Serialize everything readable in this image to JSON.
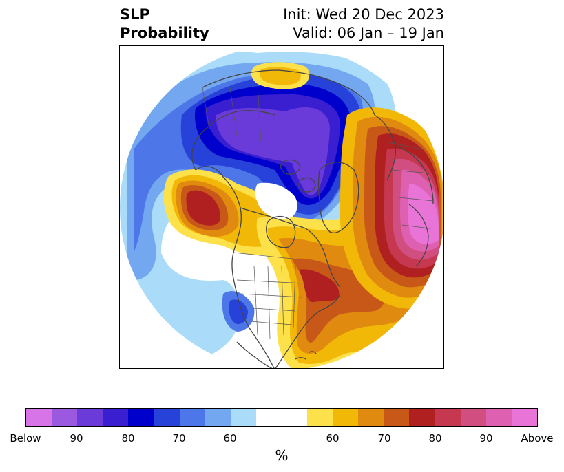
{
  "title": {
    "variable_line1": "SLP",
    "variable_line2": "Probability",
    "init": "Init: Wed 20 Dec 2023",
    "valid": "Valid: 06 Jan – 19 Jan"
  },
  "map": {
    "projection": "north-polar-stereographic",
    "region": "Northern Hemisphere (North America, Arctic, Europe)"
  },
  "colorbar": {
    "unit": "%",
    "below_colors": [
      "#d674e8",
      "#9b59e0",
      "#6a3bd8",
      "#3a1fd0",
      "#0000cc",
      "#2642d8",
      "#4d76e8",
      "#73a8f0",
      "#aadcfa"
    ],
    "neutral_color": "#ffffff",
    "above_colors": [
      "#fde14a",
      "#f2b807",
      "#e08a10",
      "#c85818",
      "#b02020",
      "#c63750",
      "#d04f80",
      "#de60b0",
      "#e874d8"
    ],
    "tick_labels": [
      "Below",
      "90",
      "80",
      "70",
      "60",
      "60",
      "70",
      "80",
      "90",
      "Above"
    ]
  }
}
